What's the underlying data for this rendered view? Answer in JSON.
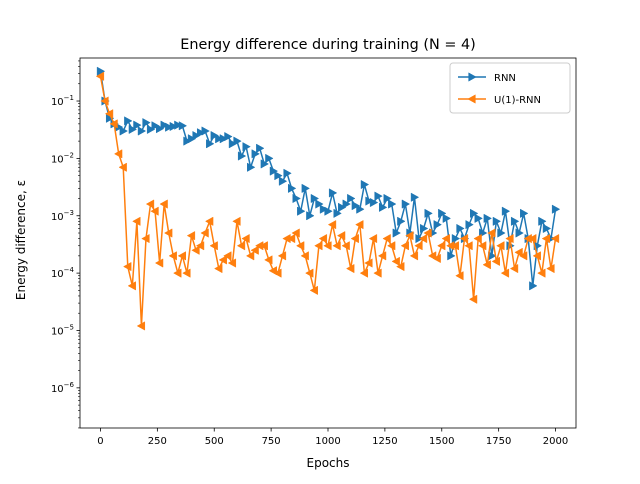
{
  "colors": {
    "rnn": "#1f77b4",
    "u1rnn": "#ff7f0e"
  },
  "chart_data": {
    "type": "line",
    "title": "Energy difference during training (N = 4)",
    "xlabel": "Epochs",
    "ylabel": "Energy difference, ε",
    "xlim": [
      -90,
      2090
    ],
    "ylim_log10": [
      -6.7,
      -0.25
    ],
    "yscale": "log",
    "xticks": [
      0,
      250,
      500,
      750,
      1000,
      1250,
      1500,
      1750,
      2000
    ],
    "xtick_labels": [
      "0",
      "250",
      "500",
      "750",
      "1000",
      "1250",
      "1500",
      "1750",
      "2000"
    ],
    "yticks_exp": [
      -6,
      -5,
      -4,
      -3,
      -2,
      -1
    ],
    "ytick_base": "10",
    "legend_position": "upper right",
    "grid": false,
    "series": [
      {
        "name": "RNN",
        "marker": "triangle-right",
        "x": [
          0,
          20,
          40,
          60,
          80,
          100,
          120,
          140,
          160,
          180,
          200,
          220,
          240,
          260,
          280,
          300,
          320,
          340,
          360,
          380,
          400,
          420,
          440,
          460,
          480,
          500,
          520,
          540,
          560,
          580,
          600,
          620,
          640,
          660,
          680,
          700,
          720,
          740,
          760,
          780,
          800,
          820,
          840,
          860,
          880,
          900,
          920,
          940,
          960,
          980,
          1000,
          1020,
          1040,
          1060,
          1080,
          1100,
          1120,
          1140,
          1160,
          1180,
          1200,
          1220,
          1240,
          1260,
          1280,
          1300,
          1320,
          1340,
          1360,
          1380,
          1400,
          1420,
          1440,
          1460,
          1480,
          1500,
          1520,
          1540,
          1560,
          1580,
          1600,
          1620,
          1640,
          1660,
          1680,
          1700,
          1720,
          1740,
          1760,
          1780,
          1800,
          1820,
          1840,
          1860,
          1880,
          1900,
          1920,
          1940,
          1960,
          1980,
          2000
        ],
        "y": [
          0.33,
          0.1,
          0.05,
          0.04,
          0.035,
          0.03,
          0.045,
          0.032,
          0.038,
          0.03,
          0.042,
          0.032,
          0.037,
          0.033,
          0.038,
          0.035,
          0.036,
          0.038,
          0.037,
          0.02,
          0.022,
          0.025,
          0.028,
          0.03,
          0.018,
          0.025,
          0.022,
          0.022,
          0.024,
          0.018,
          0.02,
          0.011,
          0.016,
          0.007,
          0.012,
          0.015,
          0.008,
          0.01,
          0.006,
          0.005,
          0.004,
          0.0055,
          0.003,
          0.002,
          0.0012,
          0.003,
          0.001,
          0.002,
          0.0016,
          0.0013,
          0.0012,
          0.0025,
          0.0011,
          0.0014,
          0.0016,
          0.002,
          0.0015,
          0.0013,
          0.0035,
          0.0018,
          0.0017,
          0.0022,
          0.0014,
          0.002,
          0.0016,
          0.0005,
          0.0008,
          0.0016,
          0.0005,
          0.0021,
          0.0004,
          0.0006,
          0.0011,
          0.0005,
          0.0007,
          0.0011,
          0.0009,
          0.0002,
          0.0004,
          0.0006,
          0.0004,
          0.0007,
          0.0011,
          0.0009,
          0.0005,
          0.0009,
          0.0002,
          0.0008,
          0.0005,
          0.0012,
          0.0003,
          0.0008,
          0.0005,
          0.0011,
          0.0004,
          6e-05,
          0.0003,
          0.0008,
          0.0006,
          0.0004,
          0.0013
        ]
      },
      {
        "name": "U(1)-RNN",
        "marker": "triangle-left",
        "x": [
          0,
          20,
          40,
          60,
          80,
          100,
          120,
          140,
          160,
          180,
          200,
          220,
          240,
          260,
          280,
          300,
          320,
          340,
          360,
          380,
          400,
          420,
          440,
          460,
          480,
          500,
          520,
          540,
          560,
          580,
          600,
          620,
          640,
          660,
          680,
          700,
          720,
          740,
          760,
          780,
          800,
          820,
          840,
          860,
          880,
          900,
          920,
          940,
          960,
          980,
          1000,
          1020,
          1040,
          1060,
          1080,
          1100,
          1120,
          1140,
          1160,
          1180,
          1200,
          1220,
          1240,
          1260,
          1280,
          1300,
          1320,
          1340,
          1360,
          1380,
          1400,
          1420,
          1440,
          1460,
          1480,
          1500,
          1520,
          1540,
          1560,
          1580,
          1600,
          1620,
          1640,
          1660,
          1680,
          1700,
          1720,
          1740,
          1760,
          1780,
          1800,
          1820,
          1840,
          1860,
          1880,
          1900,
          1920,
          1940,
          1960,
          1980,
          2000
        ],
        "y": [
          0.27,
          0.1,
          0.06,
          0.04,
          0.012,
          0.007,
          0.00013,
          6e-05,
          0.0008,
          1.2e-05,
          0.0004,
          0.0016,
          0.0012,
          0.00015,
          0.0016,
          0.0005,
          0.0002,
          0.0001,
          0.0002,
          0.0001,
          0.00045,
          0.00025,
          0.0003,
          0.0005,
          0.0008,
          0.0003,
          0.00012,
          0.00017,
          0.0002,
          0.00015,
          0.0008,
          0.0003,
          0.0004,
          0.0002,
          0.00025,
          0.0003,
          0.0003,
          0.00017,
          0.00011,
          0.0001,
          0.0002,
          0.0004,
          0.0004,
          0.0005,
          0.0003,
          0.0002,
          0.0001,
          5e-05,
          0.0003,
          0.0004,
          0.0003,
          0.0007,
          0.0003,
          0.00045,
          0.0003,
          0.00012,
          0.0004,
          0.0007,
          0.0001,
          0.00015,
          0.0004,
          0.0001,
          0.0002,
          0.0004,
          0.0003,
          0.00016,
          0.00013,
          0.0003,
          0.00045,
          0.0002,
          0.0003,
          0.0004,
          0.0005,
          0.0002,
          0.00018,
          0.0003,
          0.0004,
          0.0003,
          0.0003,
          9e-05,
          0.0004,
          0.0003,
          3.5e-05,
          0.0004,
          0.0003,
          0.00014,
          0.0005,
          0.00016,
          0.0003,
          0.0001,
          0.0004,
          0.00012,
          0.00023,
          0.0002,
          0.0004,
          0.0004,
          0.0002,
          0.0001,
          0.0004,
          0.00012,
          0.0004
        ]
      }
    ]
  }
}
